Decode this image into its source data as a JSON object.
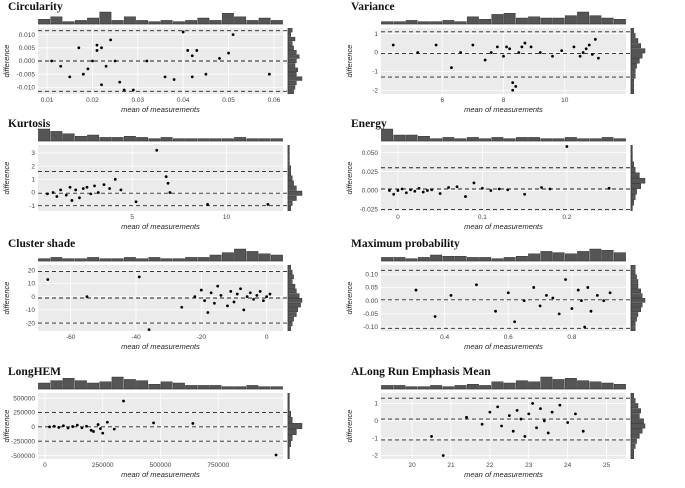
{
  "chart_data": [
    {
      "type": "scatter",
      "title": "Circularity",
      "xlabel": "mean of measurements",
      "ylabel": "difference",
      "xlim": [
        0.008,
        0.062
      ],
      "ylim": [
        -0.0125,
        0.0125
      ],
      "xticks": [
        0.01,
        0.02,
        0.03,
        0.04,
        0.05,
        0.06
      ],
      "xticklabels": [
        "0.01",
        "0.02",
        "0.03",
        "0.04",
        "0.05",
        "0.06"
      ],
      "yticks": [
        0.01,
        0.005,
        0,
        -0.005,
        -0.01
      ],
      "yticklabels": [
        "0.010",
        "0.005",
        "0.000",
        "-0.005",
        "-0.010"
      ],
      "hlines": [
        0.0115,
        0.0,
        -0.0115
      ],
      "grid": true,
      "x": [
        0.011,
        0.013,
        0.015,
        0.017,
        0.018,
        0.019,
        0.02,
        0.021,
        0.021,
        0.022,
        0.022,
        0.023,
        0.024,
        0.025,
        0.026,
        0.027,
        0.029,
        0.032,
        0.036,
        0.038,
        0.04,
        0.041,
        0.042,
        0.042,
        0.043,
        0.045,
        0.048,
        0.05,
        0.051,
        0.059
      ],
      "y": [
        0.0,
        -0.002,
        -0.006,
        0.005,
        -0.005,
        -0.003,
        0.0,
        0.006,
        0.004,
        -0.009,
        0.005,
        -0.002,
        0.008,
        0.0,
        -0.008,
        -0.011,
        -0.011,
        0.0,
        -0.006,
        -0.007,
        0.011,
        0.004,
        -0.006,
        0.002,
        0.004,
        -0.005,
        0.001,
        0.003,
        0.01,
        -0.005
      ],
      "top_hist": [
        0.4,
        0.6,
        0.2,
        0.3,
        0.5,
        1.0,
        0.3,
        0.6,
        0.3,
        0.2,
        0.3,
        0.2,
        0.3,
        0.5,
        0.3,
        0.9,
        0.6,
        0.3,
        0.5,
        0.3
      ],
      "side_hist": [
        0.3,
        0.2,
        0.5,
        0.3,
        0.4,
        0.6,
        0.8,
        0.6,
        0.5,
        0.7,
        0.6,
        1.0,
        0.6,
        0.5,
        0.4
      ]
    },
    {
      "type": "scatter",
      "title": "Variance",
      "xlabel": "mean of measurements",
      "ylabel": "difference",
      "xlim": [
        4.0,
        12.0
      ],
      "ylim": [
        -2.2,
        1.3
      ],
      "xticks": [
        6,
        8,
        10
      ],
      "xticklabels": [
        "6",
        "8",
        "10"
      ],
      "yticks": [
        1,
        0,
        -1,
        -2
      ],
      "yticklabels": [
        "1",
        "0",
        "-1",
        "-2"
      ],
      "hlines": [
        1.1,
        -0.05,
        -1.3
      ],
      "grid": true,
      "x": [
        4.4,
        5.2,
        5.8,
        6.3,
        6.6,
        7.0,
        7.4,
        7.6,
        7.8,
        8.0,
        8.1,
        8.2,
        8.3,
        8.3,
        8.4,
        8.5,
        8.6,
        8.7,
        8.9,
        9.2,
        9.6,
        9.9,
        10.3,
        10.5,
        10.6,
        10.7,
        10.8,
        10.9,
        11.0,
        11.1
      ],
      "y": [
        0.4,
        0.0,
        0.4,
        -0.8,
        0.0,
        0.4,
        -0.4,
        0.0,
        0.3,
        -0.2,
        0.3,
        0.2,
        -1.6,
        -2.0,
        -1.8,
        0.0,
        0.3,
        0.5,
        0.3,
        0.0,
        -0.2,
        0.1,
        0.3,
        -0.2,
        0.0,
        0.2,
        0.4,
        -0.1,
        0.7,
        -0.3
      ],
      "top_hist": [
        0.2,
        0.2,
        0.3,
        0.2,
        0.2,
        0.3,
        0.2,
        0.6,
        0.4,
        0.8,
        0.9,
        0.5,
        0.6,
        0.5,
        0.5,
        0.7,
        1.0,
        0.7,
        0.5,
        0.4
      ],
      "side_hist": [
        0.2,
        0.3,
        0.5,
        0.7,
        1.0,
        0.8,
        0.6,
        0.4,
        0.3,
        0.3,
        0.2,
        0.2,
        0.2
      ]
    },
    {
      "type": "scatter",
      "title": "Kurtosis",
      "xlabel": "mean of measurements",
      "ylabel": "difference",
      "xlim": [
        0.0,
        13.0
      ],
      "ylim": [
        -1.4,
        3.6
      ],
      "xticks": [
        5,
        10
      ],
      "xticklabels": [
        "5",
        "10"
      ],
      "yticks": [
        3,
        2,
        1,
        0,
        -1
      ],
      "yticklabels": [
        "3",
        "2",
        "1",
        "0",
        "-1"
      ],
      "hlines": [
        1.6,
        -0.05,
        -1.0
      ],
      "grid": true,
      "x": [
        0.5,
        0.8,
        1.0,
        1.2,
        1.5,
        1.7,
        1.8,
        2.0,
        2.2,
        2.4,
        2.6,
        2.8,
        3.0,
        3.2,
        3.5,
        3.8,
        4.1,
        4.4,
        5.2,
        6.3,
        6.8,
        6.9,
        7.0,
        9.0,
        12.2
      ],
      "y": [
        -0.1,
        0.0,
        -0.3,
        0.2,
        -0.2,
        0.4,
        -0.6,
        0.2,
        -0.4,
        0.3,
        0.4,
        -0.1,
        0.5,
        0.0,
        0.6,
        0.3,
        1.0,
        0.2,
        -0.7,
        3.2,
        1.2,
        0.7,
        0.0,
        -0.9,
        -0.9
      ],
      "top_hist": [
        1.0,
        0.8,
        0.6,
        0.4,
        0.5,
        0.3,
        0.3,
        0.4,
        0.3,
        0.2,
        0.3,
        0.2,
        0.2,
        0.2,
        0.2,
        0.2,
        0.3,
        0.2,
        0.2,
        0.2
      ],
      "side_hist": [
        0.1,
        0.1,
        0.1,
        0.1,
        0.2,
        0.2,
        0.3,
        0.4,
        0.6,
        1.0,
        0.6,
        0.3,
        0.2
      ]
    },
    {
      "type": "scatter",
      "title": "Energy",
      "xlabel": "mean of measurements",
      "ylabel": "difference",
      "xlim": [
        -0.02,
        0.27
      ],
      "ylim": [
        -0.027,
        0.06
      ],
      "xticks": [
        0,
        0.1,
        0.2
      ],
      "xticklabels": [
        "0",
        "0.1",
        "0.2"
      ],
      "yticks": [
        0.05,
        0.025,
        0,
        -0.025
      ],
      "yticklabels": [
        "0.050",
        "0.025",
        "0.000",
        "-0.025"
      ],
      "hlines": [
        0.03,
        0.002,
        -0.025
      ],
      "grid": true,
      "x": [
        -0.01,
        -0.005,
        0.0,
        0.005,
        0.01,
        0.015,
        0.02,
        0.025,
        0.03,
        0.035,
        0.04,
        0.05,
        0.06,
        0.07,
        0.08,
        0.09,
        0.1,
        0.11,
        0.12,
        0.13,
        0.15,
        0.17,
        0.18,
        0.2,
        0.25
      ],
      "y": [
        0.0,
        -0.005,
        0.0,
        0.002,
        -0.003,
        0.001,
        -0.001,
        0.003,
        -0.002,
        0.0,
        0.001,
        -0.004,
        0.004,
        0.005,
        -0.008,
        0.01,
        0.003,
        0.0,
        0.002,
        0.001,
        -0.005,
        0.004,
        0.002,
        0.058,
        0.003
      ],
      "top_hist": [
        1.0,
        0.5,
        0.5,
        0.4,
        0.2,
        0.3,
        0.2,
        0.3,
        0.2,
        0.3,
        0.2,
        0.3,
        0.3,
        0.2,
        0.2,
        0.3,
        0.2,
        0.2,
        0.3,
        0.2
      ],
      "side_hist": [
        0.1,
        0.1,
        0.1,
        0.2,
        0.3,
        0.6,
        1.0,
        0.7,
        0.4,
        0.3,
        0.2,
        0.1
      ]
    },
    {
      "type": "scatter",
      "title": "Cluster shade",
      "xlabel": "mean of measurements",
      "ylabel": "difference",
      "xlim": [
        -70.0,
        5.0
      ],
      "ylim": [
        -26.0,
        24.0
      ],
      "xticks": [
        -60,
        -40,
        -20,
        0
      ],
      "xticklabels": [
        "-60",
        "-40",
        "-20",
        "0"
      ],
      "yticks": [
        20,
        10,
        0,
        -10,
        -20
      ],
      "yticklabels": [
        "20",
        "10",
        "0",
        "-10",
        "-20"
      ],
      "hlines": [
        19.0,
        -1.0,
        -20.0
      ],
      "grid": true,
      "x": [
        -67,
        -55,
        -39,
        -36,
        -26,
        -22,
        -20,
        -19,
        -18,
        -17,
        -16,
        -15,
        -14,
        -12,
        -11,
        -10,
        -9,
        -8,
        -7,
        -6,
        -5,
        -4,
        -3,
        -2,
        -1,
        0,
        1
      ],
      "y": [
        13,
        0,
        15,
        -25,
        -8,
        0,
        5,
        -3,
        -12,
        3,
        -5,
        8,
        1,
        -7,
        4,
        -4,
        2,
        6,
        -10,
        0,
        3,
        -2,
        1,
        4,
        -3,
        0,
        2
      ],
      "top_hist": [
        0.2,
        0.3,
        0.2,
        0.2,
        0.3,
        0.2,
        0.2,
        0.3,
        0.2,
        0.3,
        0.2,
        0.2,
        0.3,
        0.3,
        0.5,
        0.7,
        1.0,
        0.8,
        0.6,
        0.5
      ],
      "side_hist": [
        0.2,
        0.3,
        0.4,
        0.3,
        0.5,
        0.6,
        0.8,
        1.0,
        0.9,
        0.7,
        0.6,
        0.4,
        0.3,
        0.2
      ]
    },
    {
      "type": "scatter",
      "title": "Maximum probability",
      "xlabel": "mean of measurements",
      "ylabel": "difference",
      "xlim": [
        0.2,
        0.97
      ],
      "ylim": [
        -0.115,
        0.135
      ],
      "xticks": [
        0.4,
        0.6,
        0.8
      ],
      "xticklabels": [
        "0.4",
        "0.6",
        "0.8"
      ],
      "yticks": [
        0.1,
        0.05,
        0.0,
        -0.05,
        -0.1
      ],
      "yticklabels": [
        "0.10",
        "0.05",
        "0.00",
        "-0.05",
        "-0.10"
      ],
      "hlines": [
        0.115,
        0.003,
        -0.105
      ],
      "grid": true,
      "x": [
        0.31,
        0.37,
        0.42,
        0.5,
        0.56,
        0.6,
        0.62,
        0.65,
        0.68,
        0.7,
        0.72,
        0.74,
        0.76,
        0.78,
        0.8,
        0.82,
        0.83,
        0.84,
        0.85,
        0.86,
        0.88,
        0.9,
        0.92
      ],
      "y": [
        0.04,
        -0.06,
        0.02,
        0.06,
        -0.04,
        0.03,
        -0.08,
        0.0,
        0.05,
        -0.02,
        0.02,
        0.01,
        -0.05,
        0.08,
        -0.03,
        0.04,
        0.0,
        -0.1,
        0.05,
        -0.04,
        0.02,
        0.0,
        0.03
      ],
      "top_hist": [
        0.3,
        0.3,
        0.2,
        0.3,
        0.5,
        0.4,
        0.4,
        0.3,
        0.3,
        0.2,
        0.3,
        0.4,
        0.6,
        0.8,
        0.7,
        0.6,
        0.8,
        1.0,
        0.9,
        0.7
      ],
      "side_hist": [
        0.3,
        0.3,
        0.4,
        0.5,
        0.5,
        0.7,
        0.8,
        1.0,
        0.8,
        0.7,
        0.5,
        0.4,
        0.3,
        0.3
      ]
    },
    {
      "type": "scatter",
      "title": "LongHEM",
      "xlabel": "mean of measurements",
      "ylabel": "difference",
      "xlim": [
        -30000,
        1030000
      ],
      "ylim": [
        -560000,
        590000
      ],
      "xticks": [
        0,
        250000,
        500000,
        750000
      ],
      "xticklabels": [
        "0",
        "250000",
        "500000",
        "750000"
      ],
      "yticks": [
        500000,
        250000,
        0,
        -250000,
        -500000
      ],
      "yticklabels": [
        "500000",
        "250000",
        "0",
        "-250000",
        "-500000"
      ],
      "hlines": [
        250000,
        0,
        -250000
      ],
      "grid": true,
      "x": [
        20000,
        40000,
        60000,
        80000,
        100000,
        120000,
        140000,
        160000,
        180000,
        200000,
        210000,
        230000,
        240000,
        250000,
        270000,
        300000,
        340000,
        470000,
        640000,
        1000000
      ],
      "y": [
        0,
        10000,
        -10000,
        20000,
        -20000,
        5000,
        30000,
        -15000,
        10000,
        -60000,
        -80000,
        40000,
        -30000,
        -110000,
        80000,
        -40000,
        450000,
        70000,
        60000,
        -490000
      ],
      "top_hist": [
        0.5,
        0.7,
        0.9,
        0.7,
        0.5,
        0.6,
        1.0,
        0.8,
        0.7,
        0.4,
        0.6,
        0.5,
        0.3,
        0.3,
        0.3,
        0.2,
        0.2,
        0.3,
        0.2,
        0.2
      ],
      "side_hist": [
        0.1,
        0.1,
        0.1,
        0.2,
        0.3,
        1.0,
        0.6,
        0.3,
        0.2,
        0.1,
        0.1
      ]
    },
    {
      "type": "scatter",
      "title": "ALong Run Emphasis Mean",
      "xlabel": "mean of measurements",
      "ylabel": "difference",
      "xlim": [
        19.2,
        25.5
      ],
      "ylim": [
        -2.2,
        1.6
      ],
      "xticks": [
        20,
        21,
        22,
        23,
        24,
        25
      ],
      "xticklabels": [
        "20",
        "21",
        "22",
        "23",
        "24",
        "25"
      ],
      "yticks": [
        1,
        0,
        -1,
        -2
      ],
      "yticklabels": [
        "1",
        "0",
        "-1",
        "-2"
      ],
      "hlines": [
        1.3,
        0.1,
        -1.1
      ],
      "grid": true,
      "x": [
        20.5,
        20.8,
        21.4,
        21.8,
        22.0,
        22.2,
        22.3,
        22.5,
        22.6,
        22.7,
        22.8,
        22.9,
        23.0,
        23.1,
        23.2,
        23.3,
        23.4,
        23.5,
        23.6,
        23.8,
        24.0,
        24.2,
        24.4
      ],
      "y": [
        -0.9,
        -2.0,
        0.2,
        -0.2,
        0.5,
        0.8,
        -0.3,
        0.3,
        -0.6,
        0.6,
        0.1,
        -0.9,
        0.4,
        1.0,
        -0.4,
        0.7,
        0.0,
        -0.7,
        0.5,
        0.9,
        -0.1,
        0.4,
        -0.6
      ],
      "top_hist": [
        0.3,
        0.3,
        0.2,
        0.2,
        0.3,
        0.2,
        0.3,
        0.4,
        0.3,
        0.6,
        0.5,
        0.7,
        0.6,
        1.0,
        0.8,
        0.9,
        0.7,
        0.6,
        0.5,
        0.4
      ],
      "side_hist": [
        0.2,
        0.3,
        0.5,
        0.7,
        0.6,
        0.9,
        1.0,
        0.8,
        0.6,
        0.4,
        0.3,
        0.2,
        0.2
      ]
    }
  ]
}
